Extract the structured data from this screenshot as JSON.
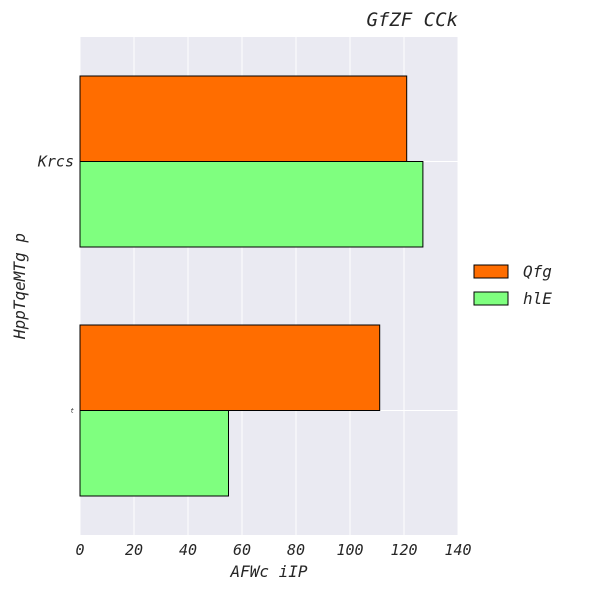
{
  "chart_data": {
    "type": "bar",
    "orientation": "horizontal",
    "title": "GfZF CCk",
    "xlabel": "AFWc iIP",
    "ylabel": "HppTqeMTg p",
    "categories": [
      "Krcs",
      "t"
    ],
    "series": [
      {
        "name": "Qfg",
        "values": [
          121,
          111
        ],
        "color": "#ff6d00"
      },
      {
        "name": "hlE",
        "values": [
          127,
          55
        ],
        "color": "#7fff7f"
      }
    ],
    "xlim": [
      0,
      140
    ],
    "xticks": [
      0,
      20,
      40,
      60,
      80,
      100,
      120,
      140
    ],
    "grid": true,
    "background": "#eaeaf2",
    "legend": "right"
  }
}
